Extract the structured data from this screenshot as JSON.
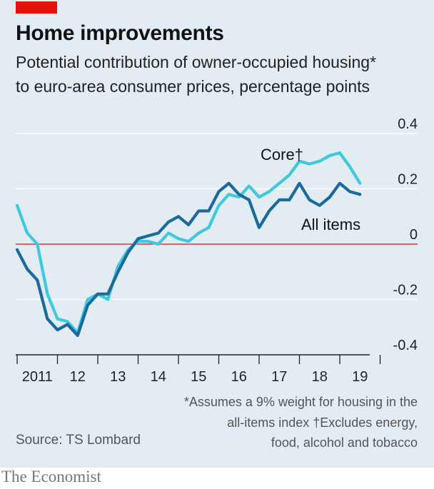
{
  "header": {
    "title": "Home improvements",
    "subtitle_line1": "Potential contribution of owner-occupied housing*",
    "subtitle_line2": "to euro-area consumer prices, percentage points"
  },
  "colors": {
    "core": "#3ec9dc",
    "all_items": "#1a6a9e",
    "zero_line": "#e3120b",
    "grid": "#ffffff",
    "background": "#e2ecf2",
    "brand_tag": "#e3120b"
  },
  "chart_data": {
    "type": "line",
    "title": "Home improvements",
    "subtitle": "Potential contribution of owner-occupied housing* to euro-area consumer prices, percentage points",
    "x_axis": {
      "tick_labels": [
        "2011",
        "12",
        "13",
        "14",
        "15",
        "16",
        "17",
        "18",
        "19"
      ],
      "range": [
        "2011-01",
        "2019-09"
      ]
    },
    "y_axis": {
      "position": "right",
      "tick_values": [
        0.4,
        0.2,
        0,
        -0.2,
        -0.4
      ],
      "tick_labels": [
        "0.4",
        "0.2",
        "0",
        "-0.2",
        "-0.4"
      ],
      "range": [
        -0.4,
        0.4
      ]
    },
    "grid": true,
    "series": [
      {
        "name": "Core†",
        "x": [
          "2011-01",
          "2011-04",
          "2011-07",
          "2011-10",
          "2012-01",
          "2012-04",
          "2012-07",
          "2012-10",
          "2013-01",
          "2013-04",
          "2013-07",
          "2013-10",
          "2014-01",
          "2014-04",
          "2014-07",
          "2014-10",
          "2015-01",
          "2015-04",
          "2015-07",
          "2015-10",
          "2016-01",
          "2016-04",
          "2016-07",
          "2016-10",
          "2017-01",
          "2017-04",
          "2017-07",
          "2017-10",
          "2018-01",
          "2018-04",
          "2018-07",
          "2018-10",
          "2019-01",
          "2019-04",
          "2019-07"
        ],
        "values": [
          0.14,
          0.04,
          0.0,
          -0.18,
          -0.27,
          -0.28,
          -0.32,
          -0.2,
          -0.18,
          -0.2,
          -0.08,
          -0.02,
          0.01,
          0.01,
          0.0,
          0.04,
          0.02,
          0.01,
          0.04,
          0.06,
          0.14,
          0.18,
          0.17,
          0.21,
          0.17,
          0.19,
          0.22,
          0.25,
          0.3,
          0.29,
          0.3,
          0.32,
          0.33,
          0.28,
          0.22
        ]
      },
      {
        "name": "All items",
        "x": [
          "2011-01",
          "2011-04",
          "2011-07",
          "2011-10",
          "2012-01",
          "2012-04",
          "2012-07",
          "2012-10",
          "2013-01",
          "2013-04",
          "2013-07",
          "2013-10",
          "2014-01",
          "2014-04",
          "2014-07",
          "2014-10",
          "2015-01",
          "2015-04",
          "2015-07",
          "2015-10",
          "2016-01",
          "2016-04",
          "2016-07",
          "2016-10",
          "2017-01",
          "2017-04",
          "2017-07",
          "2017-10",
          "2018-01",
          "2018-04",
          "2018-07",
          "2018-10",
          "2019-01",
          "2019-04",
          "2019-07"
        ],
        "values": [
          -0.02,
          -0.09,
          -0.13,
          -0.27,
          -0.31,
          -0.29,
          -0.33,
          -0.22,
          -0.18,
          -0.18,
          -0.1,
          -0.03,
          0.02,
          0.03,
          0.04,
          0.08,
          0.1,
          0.07,
          0.12,
          0.12,
          0.19,
          0.22,
          0.18,
          0.16,
          0.06,
          0.12,
          0.16,
          0.16,
          0.22,
          0.16,
          0.14,
          0.17,
          0.22,
          0.19,
          0.18
        ]
      }
    ],
    "series_labels": [
      "Core†",
      "All items"
    ]
  },
  "footnotes": {
    "line1": "*Assumes a 9% weight for housing in the",
    "line2": "all-items index   †Excludes energy,",
    "line3": "food, alcohol and tobacco"
  },
  "source": "Source: TS Lombard",
  "brand": "The Economist"
}
